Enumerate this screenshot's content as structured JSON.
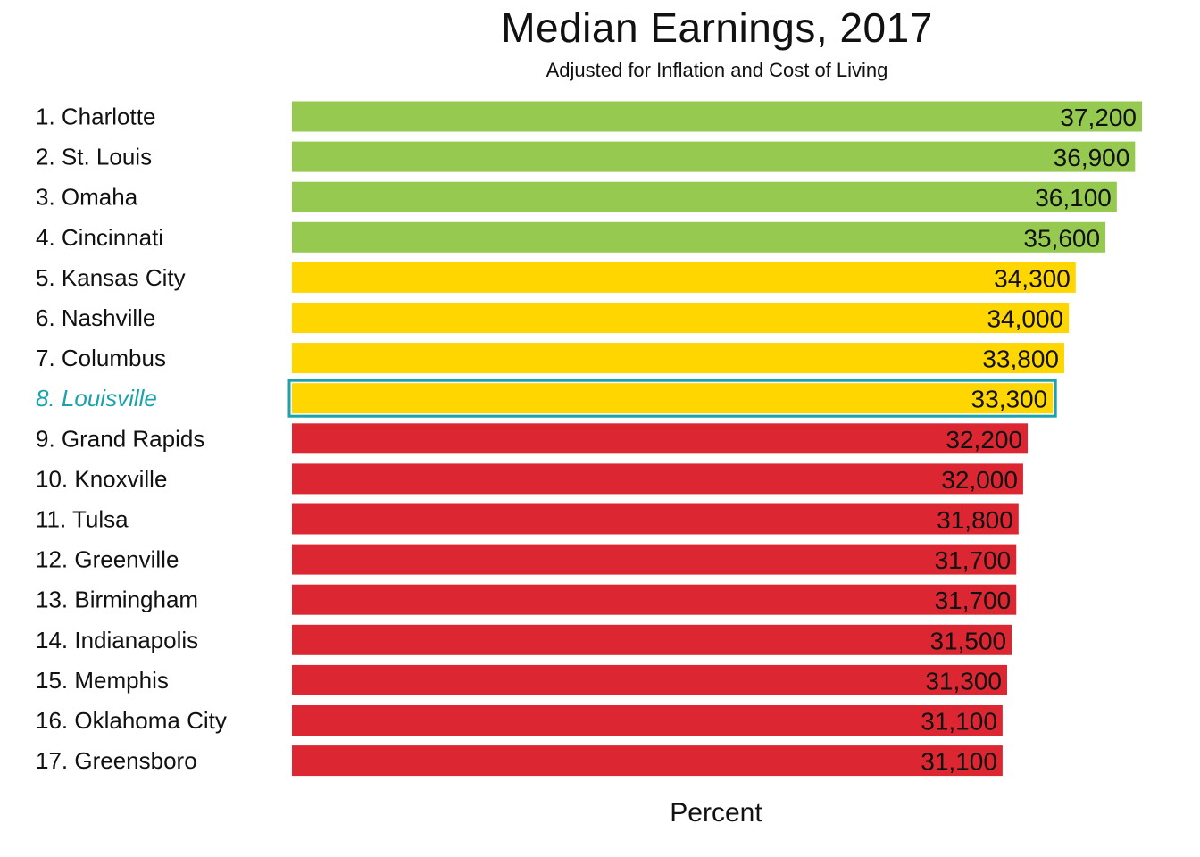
{
  "chart_data": {
    "type": "bar",
    "orientation": "horizontal",
    "title": "Median Earnings, 2017",
    "subtitle": "Adjusted for Inflation and Cost of Living",
    "xlabel": "Percent",
    "ylabel": "",
    "categories": [
      "1. Charlotte",
      "2. St. Louis",
      "3. Omaha",
      "4. Cincinnati",
      "5. Kansas City",
      "6. Nashville",
      "7. Columbus",
      "8. Louisville",
      "9. Grand Rapids",
      "10. Knoxville",
      "11. Tulsa",
      "12. Greenville",
      "13. Birmingham",
      "14. Indianapolis",
      "15. Memphis",
      "16. Oklahoma City",
      "17. Greensboro"
    ],
    "values": [
      37200,
      36900,
      36100,
      35600,
      34300,
      34000,
      33800,
      33300,
      32200,
      32000,
      31800,
      31700,
      31700,
      31500,
      31300,
      31100,
      31100
    ],
    "value_labels": [
      "37,200",
      "36,900",
      "36,100",
      "35,600",
      "34,300",
      "34,000",
      "33,800",
      "33,300",
      "32,200",
      "32,000",
      "31,800",
      "31,700",
      "31,700",
      "31,500",
      "31,300",
      "31,100",
      "31,100"
    ],
    "bar_tiers": [
      "top",
      "top",
      "top",
      "top",
      "mid",
      "mid",
      "mid",
      "mid",
      "low",
      "low",
      "low",
      "low",
      "low",
      "low",
      "low",
      "low",
      "low"
    ],
    "tier_colors": {
      "top": "#96c94f",
      "mid": "#ffd600",
      "low": "#dc2733"
    },
    "highlight_index": 7,
    "highlight_color": "#1aa3ad",
    "xlim": [
      0,
      37200
    ],
    "grid": false,
    "legend": "none"
  }
}
